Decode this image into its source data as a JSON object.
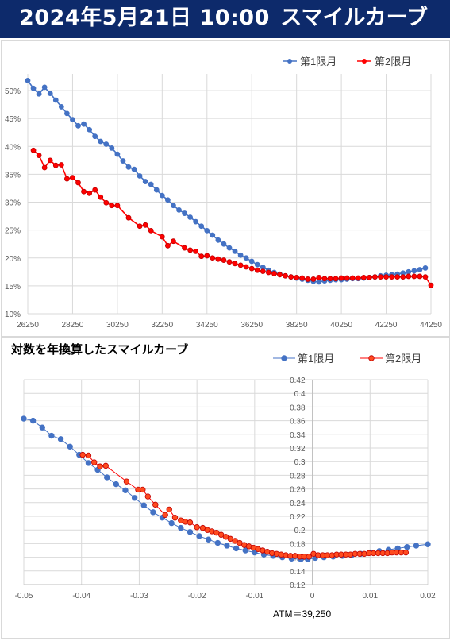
{
  "header": {
    "date": "2024年5月21日 10:00",
    "title": "スマイルカーブ"
  },
  "chart_data": [
    {
      "type": "line",
      "title": "",
      "xlabel": "",
      "ylabel": "",
      "legend_position": "top-right",
      "grid": true,
      "xlim": [
        26250,
        44250
      ],
      "ylim": [
        0.1,
        0.53
      ],
      "xticks": [
        26250,
        28250,
        30250,
        32250,
        34250,
        36250,
        38250,
        40250,
        42250,
        44250
      ],
      "yticks": [
        0.1,
        0.15,
        0.2,
        0.25,
        0.3,
        0.35,
        0.4,
        0.45,
        0.5
      ],
      "ytick_labels": [
        "10%",
        "15%",
        "20%",
        "25%",
        "30%",
        "35%",
        "40%",
        "45%",
        "50%"
      ],
      "series": [
        {
          "name": "第1限月",
          "color": "#4472c4",
          "x": [
            26250,
            26500,
            26750,
            27000,
            27250,
            27500,
            27750,
            28000,
            28250,
            28500,
            28750,
            29000,
            29250,
            29500,
            29750,
            30000,
            30250,
            30500,
            30750,
            31000,
            31250,
            31500,
            31750,
            32000,
            32250,
            32500,
            32750,
            33000,
            33250,
            33500,
            33750,
            34000,
            34250,
            34500,
            34750,
            35000,
            35250,
            35500,
            35750,
            36000,
            36250,
            36500,
            36750,
            37000,
            37250,
            37500,
            37750,
            38000,
            38250,
            38500,
            38750,
            39000,
            39250,
            39500,
            39750,
            40000,
            40250,
            40500,
            40750,
            41000,
            41250,
            41500,
            41750,
            42000,
            42250,
            42500,
            42750,
            43000,
            43250,
            43500,
            43750,
            44000
          ],
          "y": [
            0.518,
            0.504,
            0.494,
            0.506,
            0.495,
            0.483,
            0.471,
            0.459,
            0.448,
            0.437,
            0.44,
            0.43,
            0.418,
            0.409,
            0.404,
            0.397,
            0.386,
            0.374,
            0.363,
            0.359,
            0.347,
            0.337,
            0.332,
            0.322,
            0.312,
            0.304,
            0.294,
            0.286,
            0.28,
            0.273,
            0.265,
            0.257,
            0.249,
            0.241,
            0.232,
            0.225,
            0.218,
            0.212,
            0.205,
            0.2,
            0.194,
            0.188,
            0.183,
            0.178,
            0.174,
            0.171,
            0.168,
            0.166,
            0.164,
            0.162,
            0.16,
            0.158,
            0.157,
            0.159,
            0.16,
            0.161,
            0.161,
            0.162,
            0.163,
            0.163,
            0.164,
            0.165,
            0.166,
            0.168,
            0.169,
            0.17,
            0.171,
            0.173,
            0.175,
            0.177,
            0.179,
            0.182
          ]
        },
        {
          "name": "第2限月",
          "color": "#ff0000",
          "x": [
            26500,
            26750,
            27000,
            27250,
            27500,
            27750,
            28000,
            28250,
            28500,
            28750,
            29000,
            29250,
            29500,
            29750,
            30000,
            30250,
            30750,
            31250,
            31500,
            31750,
            32250,
            32500,
            32750,
            33250,
            33500,
            33750,
            34000,
            34250,
            34500,
            34750,
            35000,
            35250,
            35500,
            35750,
            36000,
            36250,
            36500,
            36750,
            37000,
            37250,
            37500,
            37750,
            38000,
            38250,
            38500,
            38750,
            39000,
            39250,
            39500,
            39750,
            40000,
            40250,
            40500,
            40750,
            41000,
            41250,
            41500,
            41750,
            42000,
            42250,
            42500,
            42750,
            43000,
            43250,
            43500,
            43750,
            44000,
            44250
          ],
          "y": [
            0.393,
            0.384,
            0.362,
            0.375,
            0.366,
            0.367,
            0.342,
            0.344,
            0.335,
            0.319,
            0.316,
            0.322,
            0.309,
            0.299,
            0.294,
            0.294,
            0.272,
            0.257,
            0.259,
            0.249,
            0.238,
            0.222,
            0.23,
            0.218,
            0.214,
            0.212,
            0.203,
            0.204,
            0.2,
            0.198,
            0.196,
            0.193,
            0.19,
            0.187,
            0.184,
            0.181,
            0.178,
            0.176,
            0.174,
            0.172,
            0.17,
            0.168,
            0.166,
            0.165,
            0.164,
            0.162,
            0.162,
            0.165,
            0.163,
            0.163,
            0.163,
            0.164,
            0.164,
            0.164,
            0.164,
            0.165,
            0.165,
            0.166,
            0.166,
            0.166,
            0.166,
            0.166,
            0.166,
            0.167,
            0.167,
            0.167,
            0.166,
            0.151
          ]
        }
      ]
    },
    {
      "type": "line",
      "title": "対数を年換算したスマイルカーブ",
      "xlabel": "",
      "ylabel": "",
      "legend_position": "top-right",
      "grid": true,
      "annotation": "ATM＝39,250",
      "xlim": [
        -0.05,
        0.02
      ],
      "ylim": [
        0.12,
        0.42
      ],
      "xticks": [
        -0.05,
        -0.04,
        -0.03,
        -0.02,
        -0.01,
        0,
        0.01,
        0.02
      ],
      "xtick_labels": [
        "-0.05",
        "-0.04",
        "-0.03",
        "-0.02",
        "-0.01",
        "0",
        "0.01",
        "0.02"
      ],
      "yticks": [
        0.12,
        0.14,
        0.16,
        0.18,
        0.2,
        0.22,
        0.24,
        0.26,
        0.28,
        0.3,
        0.32,
        0.34,
        0.36,
        0.38,
        0.4,
        0.42
      ],
      "ytick_labels": [
        "0.12",
        "0.14",
        "0.16",
        "0.18",
        "0.2",
        "0.22",
        "0.24",
        "0.26",
        "0.28",
        "0.3",
        "0.32",
        "0.34",
        "0.36",
        "0.38",
        "0.4",
        "0.42"
      ],
      "series": [
        {
          "name": "第1限月",
          "color": "#4472c4",
          "x": [
            -0.05,
            -0.0484,
            -0.0468,
            -0.0452,
            -0.0436,
            -0.042,
            -0.0404,
            -0.0388,
            -0.0372,
            -0.0356,
            -0.034,
            -0.0324,
            -0.0308,
            -0.0292,
            -0.0276,
            -0.026,
            -0.0244,
            -0.0228,
            -0.0212,
            -0.0196,
            -0.018,
            -0.0164,
            -0.0148,
            -0.0132,
            -0.0116,
            -0.01,
            -0.0084,
            -0.0068,
            -0.0052,
            -0.0036,
            -0.002,
            -0.0008,
            0.0005,
            0.002,
            0.0036,
            0.0052,
            0.0068,
            0.0084,
            0.01,
            0.0116,
            0.0132,
            0.0148,
            0.0164,
            0.018,
            0.02
          ],
          "y": [
            0.363,
            0.36,
            0.35,
            0.338,
            0.333,
            0.322,
            0.31,
            0.298,
            0.288,
            0.277,
            0.267,
            0.258,
            0.247,
            0.236,
            0.226,
            0.218,
            0.21,
            0.203,
            0.197,
            0.191,
            0.186,
            0.181,
            0.177,
            0.173,
            0.17,
            0.167,
            0.164,
            0.162,
            0.16,
            0.158,
            0.157,
            0.157,
            0.159,
            0.16,
            0.161,
            0.162,
            0.163,
            0.165,
            0.167,
            0.169,
            0.171,
            0.173,
            0.175,
            0.177,
            0.179
          ]
        },
        {
          "name": "第2限月",
          "color": "#ff0000",
          "x": [
            -0.0398,
            -0.0388,
            -0.0378,
            -0.0368,
            -0.0358,
            -0.0322,
            -0.0302,
            -0.0294,
            -0.0285,
            -0.0272,
            -0.0255,
            -0.0248,
            -0.0238,
            -0.0228,
            -0.022,
            -0.0212,
            -0.02,
            -0.019,
            -0.0182,
            -0.0174,
            -0.0166,
            -0.0158,
            -0.015,
            -0.0142,
            -0.0134,
            -0.0126,
            -0.0118,
            -0.011,
            -0.0102,
            -0.0094,
            -0.0086,
            -0.0078,
            -0.007,
            -0.0062,
            -0.0054,
            -0.0046,
            -0.0038,
            -0.003,
            -0.0022,
            -0.0014,
            -0.0006,
            0.0002,
            0.001,
            0.0018,
            0.0026,
            0.0034,
            0.0042,
            0.005,
            0.0058,
            0.0066,
            0.0074,
            0.0082,
            0.009,
            0.0098,
            0.0106,
            0.0114,
            0.0122,
            0.013,
            0.0138,
            0.0146,
            0.0154,
            0.0162
          ],
          "y": [
            0.31,
            0.309,
            0.299,
            0.293,
            0.294,
            0.271,
            0.259,
            0.259,
            0.249,
            0.237,
            0.222,
            0.23,
            0.218,
            0.214,
            0.212,
            0.211,
            0.204,
            0.203,
            0.2,
            0.198,
            0.196,
            0.193,
            0.19,
            0.187,
            0.184,
            0.181,
            0.178,
            0.176,
            0.174,
            0.172,
            0.17,
            0.168,
            0.166,
            0.165,
            0.164,
            0.163,
            0.162,
            0.162,
            0.161,
            0.161,
            0.161,
            0.165,
            0.163,
            0.163,
            0.163,
            0.163,
            0.164,
            0.164,
            0.164,
            0.164,
            0.165,
            0.165,
            0.165,
            0.166,
            0.166,
            0.166,
            0.166,
            0.166,
            0.167,
            0.167,
            0.167,
            0.167
          ]
        }
      ]
    }
  ]
}
